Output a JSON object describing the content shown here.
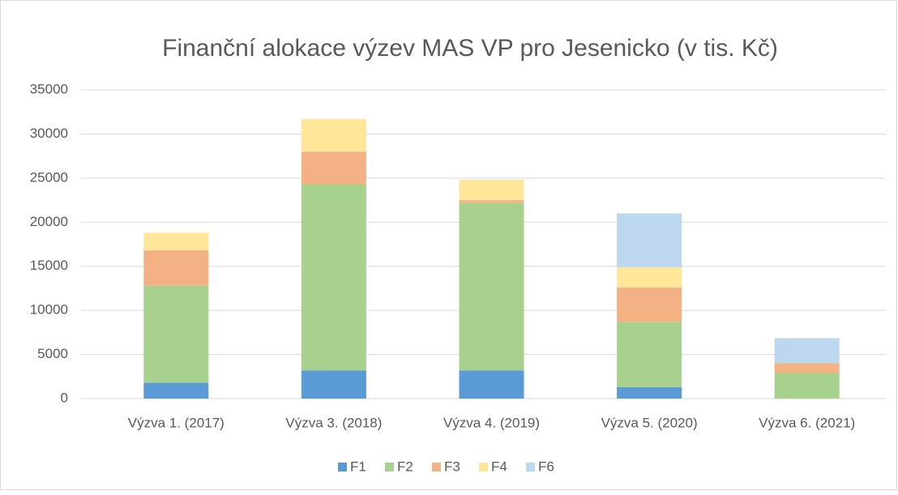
{
  "chart_data": {
    "type": "stacked_bar",
    "title": "Finanční alokace výzev MAS VP pro Jesenicko (v tis. Kč)",
    "categories": [
      "Výzva 1. (2017)",
      "Výzva 3. (2018)",
      "Výzva 4. (2019)",
      "Výzva 5. (2020)",
      "Výzva 6. (2021)"
    ],
    "series": [
      {
        "name": "F1",
        "color": "#5b9bd5",
        "values": [
          1800,
          3200,
          3200,
          1300,
          0
        ]
      },
      {
        "name": "F2",
        "color": "#a9d18e",
        "values": [
          11000,
          21100,
          19000,
          7400,
          2900
        ]
      },
      {
        "name": "F3",
        "color": "#f4b183",
        "values": [
          4000,
          3700,
          300,
          3900,
          1100
        ]
      },
      {
        "name": "F4",
        "color": "#ffe699",
        "values": [
          2000,
          3700,
          2300,
          2300,
          0
        ]
      },
      {
        "name": "F6",
        "color": "#bdd7ee",
        "values": [
          0,
          0,
          0,
          6100,
          2850
        ]
      }
    ],
    "ylim": [
      0,
      35000
    ],
    "yticks": [
      0,
      5000,
      10000,
      15000,
      20000,
      25000,
      30000,
      35000
    ],
    "grid": true,
    "legend": "bottom"
  }
}
